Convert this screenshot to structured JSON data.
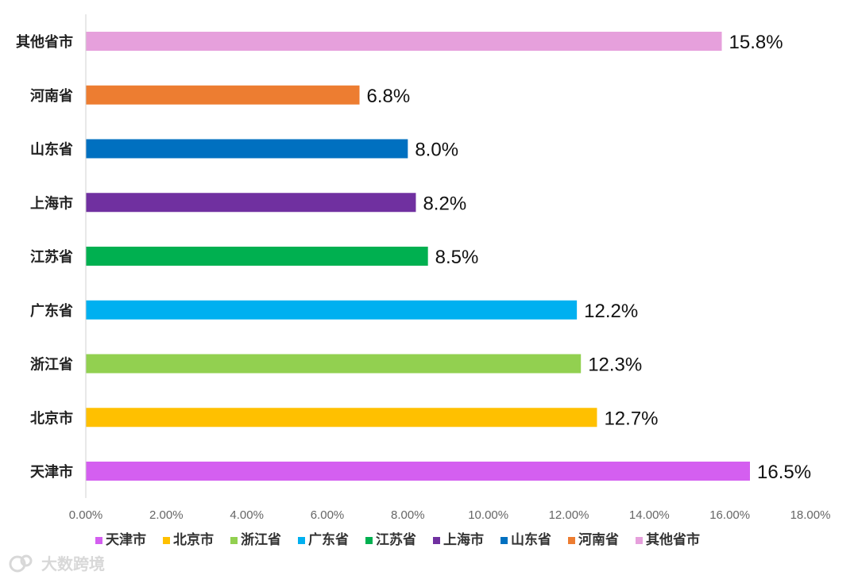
{
  "chart_data": {
    "type": "bar",
    "orientation": "horizontal",
    "categories": [
      "天津市",
      "北京市",
      "浙江省",
      "广东省",
      "江苏省",
      "上海市",
      "山东省",
      "河南省",
      "其他省市"
    ],
    "values": [
      16.5,
      12.7,
      12.3,
      12.2,
      8.5,
      8.2,
      8.0,
      6.8,
      15.8
    ],
    "value_labels": [
      "16.5%",
      "12.7%",
      "12.3%",
      "12.2%",
      "8.5%",
      "8.2%",
      "8.0%",
      "6.8%",
      "15.8%"
    ],
    "colors": [
      "#d45ff0",
      "#ffc000",
      "#92d050",
      "#00b0f0",
      "#00b050",
      "#7030a0",
      "#0070c0",
      "#ed7d31",
      "#e6a0dc"
    ],
    "xlim": [
      0,
      18
    ],
    "xticks": [
      "0.00%",
      "2.00%",
      "4.00%",
      "6.00%",
      "8.00%",
      "10.00%",
      "12.00%",
      "14.00%",
      "16.00%",
      "18.00%"
    ],
    "legend": {
      "position": "bottom",
      "entries": [
        "天津市",
        "北京市",
        "浙江省",
        "广东省",
        "江苏省",
        "上海市",
        "山东省",
        "河南省",
        "其他省市"
      ]
    },
    "grid": false,
    "title": "",
    "xlabel": "",
    "ylabel": ""
  },
  "watermark": {
    "text": "大数跨境",
    "icon": "logo-icon"
  }
}
